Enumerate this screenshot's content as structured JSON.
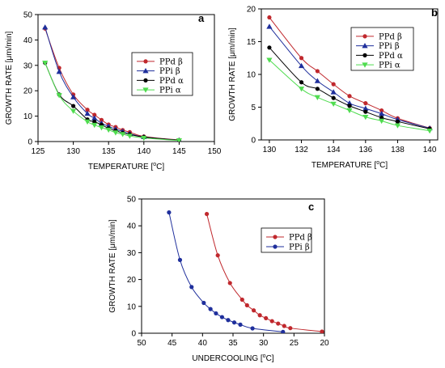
{
  "chart_data": [
    {
      "id": "a",
      "type": "line",
      "panel_label": "a",
      "xlabel": "TEMPERATURE [",
      "xunit_sup": "o",
      "xunit": "C]",
      "ylabel": "GROWTH RATE [μm/min]",
      "xlim": [
        125,
        150
      ],
      "ylim": [
        0,
        50
      ],
      "xticks": [
        125,
        130,
        135,
        140,
        145,
        150
      ],
      "yticks": [
        0,
        10,
        20,
        30,
        40,
        50
      ],
      "legend_position": "right",
      "series": [
        {
          "name": "PPd β",
          "color": "#c0282d",
          "marker": "circle",
          "x": [
            126,
            128,
            130,
            132,
            133,
            134,
            135,
            136,
            137,
            138,
            140,
            145
          ],
          "y": [
            44.5,
            29,
            18.5,
            12.5,
            10.5,
            8.5,
            6.7,
            5.7,
            4.5,
            3.7,
            2,
            0.6
          ]
        },
        {
          "name": "PPi β",
          "color": "#1f2f9c",
          "marker": "triangle",
          "x": [
            126,
            128,
            130,
            132,
            133,
            134,
            135,
            136,
            137,
            138,
            140,
            145
          ],
          "y": [
            45,
            27.5,
            17.5,
            11,
            9.2,
            7.2,
            6,
            4.9,
            4,
            3.1,
            1.8,
            0.5
          ]
        },
        {
          "name": "PPd α",
          "color": "#000000",
          "marker": "circle",
          "x": [
            126,
            128,
            130,
            132,
            133,
            134,
            135,
            136,
            137,
            138,
            140,
            145
          ],
          "y": [
            31,
            18.5,
            14,
            8.7,
            7.8,
            6.6,
            5.2,
            4.3,
            3.4,
            2.8,
            1.8,
            0.5
          ]
        },
        {
          "name": "PPi α",
          "color": "#4fdc4f",
          "marker": "triangle-down",
          "x": [
            126,
            128,
            130,
            132,
            133,
            134,
            135,
            136,
            137,
            138,
            140,
            145
          ],
          "y": [
            31,
            18.2,
            12,
            7.8,
            6.5,
            5.5,
            4.6,
            3.5,
            2.9,
            2.2,
            1.4,
            0.4
          ]
        }
      ]
    },
    {
      "id": "b",
      "type": "line",
      "panel_label": "b",
      "xlabel": "TEMPERATURE [",
      "xunit_sup": "o",
      "xunit": "C]",
      "ylabel": "GROWTH RATE [μm/min]",
      "xlim": [
        129.5,
        140.5
      ],
      "ylim": [
        0,
        20
      ],
      "xticks": [
        130,
        132,
        134,
        136,
        138,
        140
      ],
      "yticks": [
        0,
        5,
        10,
        15,
        20
      ],
      "legend_position": "top-right",
      "series": [
        {
          "name": "PPd β",
          "color": "#c0282d",
          "marker": "circle",
          "x": [
            130,
            132,
            133,
            134,
            135,
            136,
            137,
            138,
            140
          ],
          "y": [
            18.7,
            12.5,
            10.5,
            8.5,
            6.7,
            5.6,
            4.5,
            3.3,
            1.8
          ]
        },
        {
          "name": "PPi β",
          "color": "#1f2f9c",
          "marker": "triangle",
          "x": [
            130,
            132,
            133,
            134,
            135,
            136,
            137,
            138,
            140
          ],
          "y": [
            17.3,
            11.3,
            9.0,
            7.3,
            5.6,
            4.8,
            4.0,
            3.1,
            1.8
          ]
        },
        {
          "name": "PPd α",
          "color": "#000000",
          "marker": "circle",
          "x": [
            130,
            132,
            133,
            134,
            135,
            136,
            137,
            138,
            140
          ],
          "y": [
            14.1,
            8.8,
            7.8,
            6.4,
            5.2,
            4.3,
            3.4,
            2.8,
            1.7
          ]
        },
        {
          "name": "PPi α",
          "color": "#4fdc4f",
          "marker": "triangle-down",
          "x": [
            130,
            132,
            133,
            134,
            135,
            136,
            137,
            138,
            140
          ],
          "y": [
            12.2,
            7.8,
            6.5,
            5.5,
            4.5,
            3.5,
            2.9,
            2.2,
            1.4
          ]
        }
      ]
    },
    {
      "id": "c",
      "type": "line",
      "panel_label": "c",
      "xlabel": "UNDERCOOLING [",
      "xunit_sup": "o",
      "xunit": "C]",
      "ylabel": "GROWTH RATE [μm/min]",
      "xlim": [
        50,
        20
      ],
      "ylim": [
        0,
        50
      ],
      "xticks": [
        50,
        45,
        40,
        35,
        30,
        25,
        20
      ],
      "yticks": [
        0,
        10,
        20,
        30,
        40,
        50
      ],
      "legend_position": "top-right",
      "series": [
        {
          "name": "PPd β",
          "color": "#c0282d",
          "marker": "circle",
          "x": [
            39.3,
            37.5,
            35.5,
            33.5,
            32.7,
            31.6,
            30.6,
            29.6,
            28.6,
            27.6,
            26.6,
            25.6,
            20.4
          ],
          "y": [
            44.4,
            29,
            18.7,
            12.5,
            10.4,
            8.5,
            6.7,
            5.6,
            4.5,
            3.6,
            2.7,
            1.9,
            0.6
          ]
        },
        {
          "name": "PPi β",
          "color": "#1f2f9c",
          "marker": "circle",
          "x": [
            45.5,
            43.7,
            41.8,
            39.8,
            38.7,
            37.8,
            36.8,
            35.8,
            34.8,
            33.8,
            31.8,
            26.8
          ],
          "y": [
            45,
            27.3,
            17.2,
            11.3,
            9.0,
            7.4,
            6.0,
            4.9,
            4.0,
            3.2,
            1.8,
            0.5
          ]
        }
      ]
    }
  ]
}
